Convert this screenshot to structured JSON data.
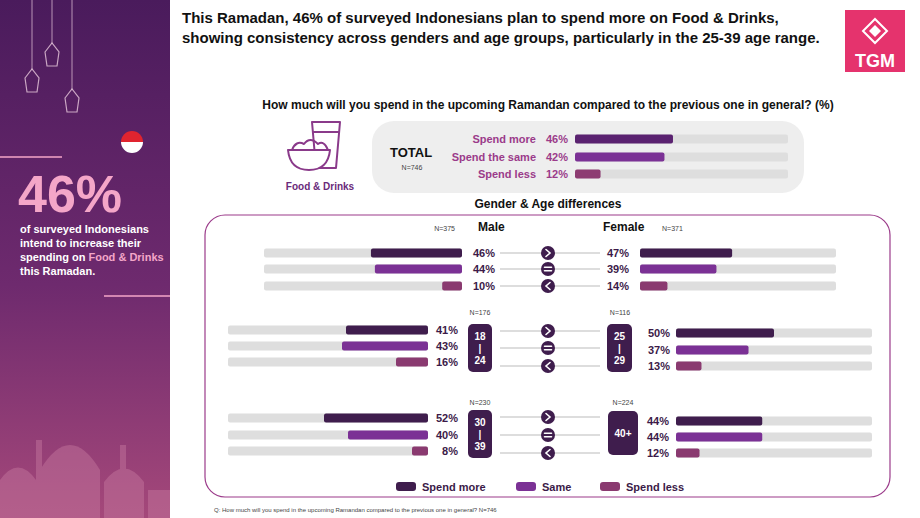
{
  "header": {
    "title": "This Ramadan, 46% of surveyed Indonesians plan to spend more on Food & Drinks, showing consistency across genders and age groups, particularly in the 25-39 age range.",
    "logo": "TGM"
  },
  "sidebar": {
    "headline": "46%",
    "text": [
      {
        "text": "of surveyed Indonesians intend to increase their spending on ",
        "color": "#ffffff"
      },
      {
        "text": "Food & Drinks",
        "color": "#f4a6c8"
      },
      {
        "text": " this Ramadan.",
        "color": "#ffffff"
      }
    ]
  },
  "question": "How much will you spend in the upcoming Ramandan compared to the previous one in general? (%)",
  "icon_label": "Food & Drinks",
  "section_title": "Gender & Age differences",
  "key": [
    {
      "name": "Spend more",
      "color": "#3f1d4d"
    },
    {
      "name": "Same",
      "color": "#7b3195"
    },
    {
      "name": "Spend less",
      "color": "#8a3a70"
    }
  ],
  "footnote": "Q: How much will you spend in the upcoming Ramandan compared to the previous one in general? N=746",
  "chart_data": [
    {
      "type": "bar",
      "orientation": "horizontal",
      "title": "TOTAL",
      "subtitle": "N=746",
      "categories": [
        "Spend more",
        "Spend the same",
        "Spend less"
      ],
      "values": [
        46,
        42,
        12
      ],
      "value_labels": [
        "46%",
        "42%",
        "12%"
      ],
      "colors": [
        "#5a2270",
        "#7b3195",
        "#8d3c72"
      ],
      "xlim": [
        0,
        100
      ],
      "tick_labels": false,
      "data_labels": true
    },
    {
      "type": "bar",
      "orientation": "horizontal",
      "title": "Male",
      "subtitle": "N=375",
      "categories": [
        null,
        null,
        null
      ],
      "values": [
        46,
        44,
        10
      ],
      "value_labels": [
        "46%",
        "44%",
        "10%"
      ],
      "colors": [
        "#3f1d4d",
        "#7b3195",
        "#8a3a70"
      ],
      "xlim": [
        0,
        100
      ],
      "tick_labels": false,
      "data_labels": true
    },
    {
      "type": "bar",
      "orientation": "horizontal",
      "title": "Female",
      "subtitle": "N=371",
      "categories": [
        null,
        null,
        null
      ],
      "values": [
        47,
        39,
        14
      ],
      "value_labels": [
        "47%",
        "39%",
        "14%"
      ],
      "colors": [
        "#3f1d4d",
        "#7b3195",
        "#8a3a70"
      ],
      "xlim": [
        0,
        100
      ],
      "tick_labels": false,
      "data_labels": true
    },
    {
      "type": "bar",
      "orientation": "horizontal",
      "title": "18 | 24",
      "subtitle": "N=176",
      "categories": [
        null,
        null,
        null
      ],
      "values": [
        41,
        43,
        16
      ],
      "value_labels": [
        "41%",
        "43%",
        "16%"
      ],
      "colors": [
        "#3f1d4d",
        "#7b3195",
        "#8a3a70"
      ],
      "xlim": [
        0,
        100
      ],
      "tick_labels": false,
      "data_labels": true
    },
    {
      "type": "bar",
      "orientation": "horizontal",
      "title": "25 | 29",
      "subtitle": "N=116",
      "categories": [
        null,
        null,
        null
      ],
      "values": [
        50,
        37,
        13
      ],
      "value_labels": [
        "50%",
        "37%",
        "13%"
      ],
      "colors": [
        "#3f1d4d",
        "#7b3195",
        "#8a3a70"
      ],
      "xlim": [
        0,
        100
      ],
      "tick_labels": false,
      "data_labels": true
    },
    {
      "type": "bar",
      "orientation": "horizontal",
      "title": "30 | 39",
      "subtitle": "N=230",
      "categories": [
        null,
        null,
        null
      ],
      "values": [
        52,
        40,
        8
      ],
      "value_labels": [
        "52%",
        "40%",
        "8%"
      ],
      "colors": [
        "#3f1d4d",
        "#7b3195",
        "#8a3a70"
      ],
      "xlim": [
        0,
        100
      ],
      "tick_labels": false,
      "data_labels": true
    },
    {
      "type": "bar",
      "orientation": "horizontal",
      "title": "40+",
      "subtitle": "N=224",
      "categories": [
        null,
        null,
        null
      ],
      "values": [
        44,
        44,
        12
      ],
      "value_labels": [
        "44%",
        "44%",
        "12%"
      ],
      "colors": [
        "#3f1d4d",
        "#7b3195",
        "#8a3a70"
      ],
      "xlim": [
        0,
        100
      ],
      "tick_labels": false,
      "data_labels": true
    }
  ]
}
